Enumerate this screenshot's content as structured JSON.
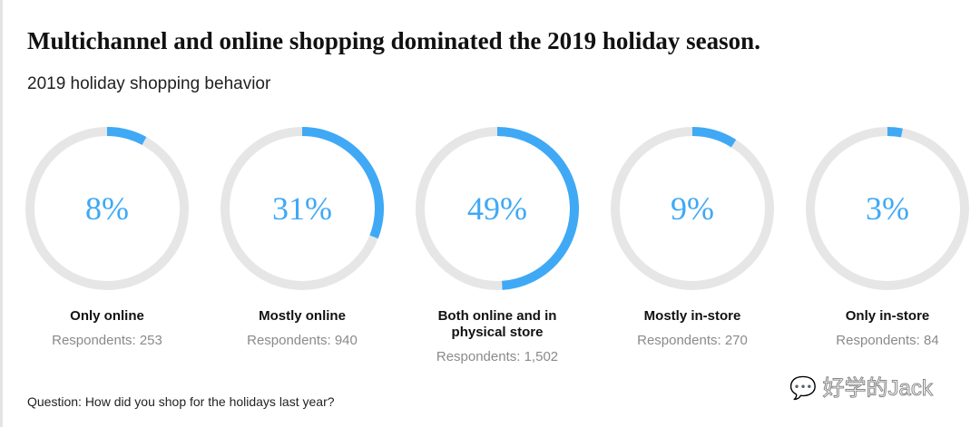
{
  "title": "Multichannel and online shopping dominated the 2019 holiday season.",
  "subtitle": "2019 holiday shopping behavior",
  "question": "Question: How did you shop for the holidays last year?",
  "watermark": "好学的Jack",
  "colors": {
    "accent": "#3fa9f5",
    "track": "#e6e6e6"
  },
  "chart_data": {
    "type": "donut",
    "title": "2019 holiday shopping behavior",
    "series": [
      {
        "label": "Only online",
        "value": 8,
        "value_label": "8%",
        "respondents": "Respondents: 253"
      },
      {
        "label": "Mostly online",
        "value": 31,
        "value_label": "31%",
        "respondents": "Respondents: 940"
      },
      {
        "label": "Both online and in physical store",
        "value": 49,
        "value_label": "49%",
        "respondents": "Respondents: 1,502"
      },
      {
        "label": "Mostly in-store",
        "value": 9,
        "value_label": "9%",
        "respondents": "Respondents: 270"
      },
      {
        "label": "Only in-store",
        "value": 3,
        "value_label": "3%",
        "respondents": "Respondents: 84"
      }
    ]
  }
}
